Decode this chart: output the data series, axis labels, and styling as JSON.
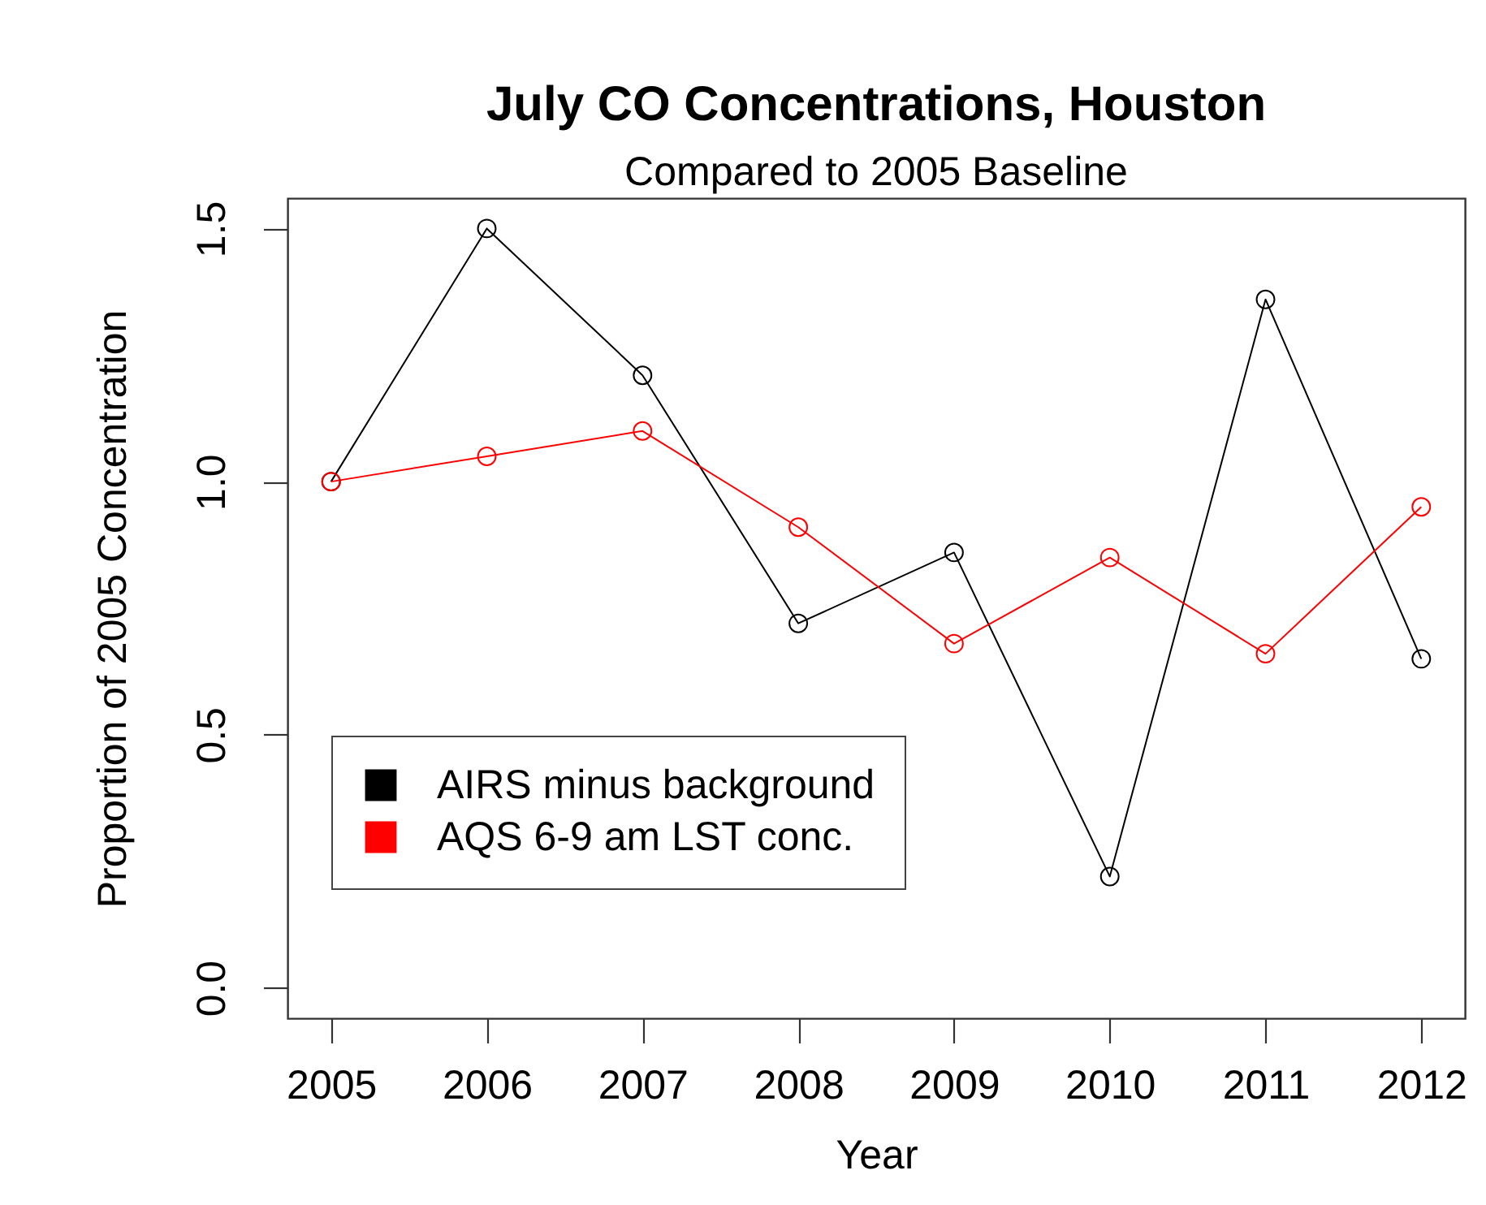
{
  "chart_data": {
    "type": "line",
    "title": "July CO Concentrations, Houston",
    "subtitle": "Compared to 2005 Baseline",
    "xlabel": "Year",
    "ylabel": "Proportion of 2005 Concentration",
    "x": [
      2005,
      2006,
      2007,
      2008,
      2009,
      2010,
      2011,
      2012
    ],
    "series": [
      {
        "name": "AIRS minus background",
        "color": "#000000",
        "values": [
          1.0,
          1.5,
          1.21,
          0.72,
          0.86,
          0.22,
          1.36,
          0.65
        ]
      },
      {
        "name": "AQS 6-9 am LST conc.",
        "color": "#ff0000",
        "values": [
          1.0,
          1.05,
          1.1,
          0.91,
          0.68,
          0.85,
          0.66,
          0.95
        ]
      }
    ],
    "xlim": [
      2004.72,
      2012.28
    ],
    "xticks": [
      2005,
      2006,
      2007,
      2008,
      2009,
      2010,
      2011,
      2012
    ],
    "ylim": [
      -0.06,
      1.56
    ],
    "yticks": [
      {
        "value": 0,
        "label": "0.0"
      },
      0.5,
      {
        "value": 1,
        "label": "1.0"
      },
      1.5
    ],
    "grid": false,
    "legend": "bottom left",
    "marker": "circle",
    "line_style": "solid"
  }
}
